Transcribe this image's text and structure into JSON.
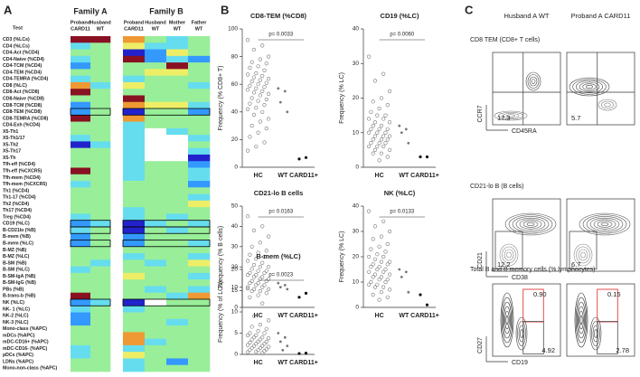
{
  "panel_labels": [
    "A",
    "B",
    "C"
  ],
  "heatmap": {
    "test_header": "Test",
    "families": [
      {
        "name": "Family A",
        "columns": [
          {
            "name": "Proband",
            "genotype": "CARD11"
          },
          {
            "name": "Husband",
            "genotype": "WT"
          }
        ]
      },
      {
        "name": "Family B",
        "columns": [
          {
            "name": "Proband",
            "genotype": "CARD11"
          },
          {
            "name": "Husband",
            "genotype": "WT"
          },
          {
            "name": "Mother",
            "genotype": "WT"
          },
          {
            "name": "Father",
            "genotype": "WT"
          }
        ]
      }
    ],
    "rows": [
      {
        "label": "CD3 (%LCs)",
        "colors": [
          "#812",
          "#812",
          "#e93",
          "#9e9",
          "#6de",
          "#9e9"
        ]
      },
      {
        "label": "CD4 (%LCs)",
        "colors": [
          "#6de",
          "#9e9",
          "#ee6",
          "#6de",
          "#6de",
          "#9e9"
        ]
      },
      {
        "label": "CD4-Act (%CD4)",
        "colors": [
          "#9e9",
          "#9e9",
          "#22c",
          "#39f",
          "#ee6",
          "#9e9"
        ]
      },
      {
        "label": "CD4-Naive (%CD4)",
        "colors": [
          "#6de",
          "#9e9",
          "#812",
          "#39f",
          "#6de",
          "#39f"
        ]
      },
      {
        "label": "CD4-TCM (%CD4)",
        "colors": [
          "#39f",
          "#9e9",
          "#9e9",
          "#9e9",
          "#812",
          "#9e9"
        ]
      },
      {
        "label": "CD4-TEM (%CD4)",
        "colors": [
          "#9e9",
          "#9e9",
          "#9e9",
          "#ee6",
          "#ee6",
          "#9e9"
        ]
      },
      {
        "label": "CD4-TEMRA (%CD4)",
        "colors": [
          "#6de",
          "#9e9",
          "#6de",
          "#9e9",
          "#9e9",
          "#9e9"
        ]
      },
      {
        "label": "CD8 (%LC)",
        "colors": [
          "#e93",
          "#6de",
          "#ee6",
          "#9e9",
          "#9e9",
          "#6de"
        ]
      },
      {
        "label": "CD8-Act (%CD8)",
        "colors": [
          "#812",
          "#9e9",
          "#9e9",
          "#9e9",
          "#9e9",
          "#9e9"
        ]
      },
      {
        "label": "CD8-Naive (%CD8)",
        "colors": [
          "#9e9",
          "#9e9",
          "#812",
          "#9e9",
          "#9e9",
          "#9e9"
        ]
      },
      {
        "label": "CD8-TCM (%CD8)",
        "colors": [
          "#39f",
          "#9e9",
          "#e93",
          "#ee6",
          "#ee6",
          "#6de"
        ]
      },
      {
        "label": "CD8-TEM (%CD8)",
        "colors": [
          "#39f",
          "#9e9",
          "#22c",
          "#9e9",
          "#9e9",
          "#39f"
        ],
        "boxed": true
      },
      {
        "label": "CD8-TEMRA (%CD8)",
        "colors": [
          "#812",
          "#9e9",
          "#e93",
          "#9e9",
          "#9e9",
          "#9e9"
        ]
      },
      {
        "label": "CD4-Exh (%CD4)",
        "colors": [
          "#9e9",
          "#9e9",
          "#6de",
          "#9e9",
          "#9e9",
          "#9e9"
        ]
      },
      {
        "label": "X5-Th1",
        "colors": [
          "#9e9",
          "#9e9",
          "#6de",
          "#fff",
          "#6de",
          "#9e9"
        ]
      },
      {
        "label": "X5-Th1/17",
        "colors": [
          "#6de",
          "#9e9",
          "#6de",
          "#fff",
          "#fff",
          "#6de"
        ]
      },
      {
        "label": "X5-Th2",
        "colors": [
          "#22c",
          "#6de",
          "#6de",
          "#fff",
          "#fff",
          "#9e9"
        ]
      },
      {
        "label": "X5-Th17",
        "colors": [
          "#9e9",
          "#9e9",
          "#6de",
          "#fff",
          "#fff",
          "#6de"
        ]
      },
      {
        "label": "X5-Th",
        "colors": [
          "#9e9",
          "#9e9",
          "#6de",
          "#fff",
          "#fff",
          "#22c"
        ]
      },
      {
        "label": "Tfh-eff (%CD4)",
        "colors": [
          "#9e9",
          "#9e9",
          "#6de",
          "#9e9",
          "#9e9",
          "#39f"
        ]
      },
      {
        "label": "Tfh-eff (%CXCR5)",
        "colors": [
          "#812",
          "#9e9",
          "#6de",
          "#9e9",
          "#9e9",
          "#6de"
        ]
      },
      {
        "label": "Tfh-mem (%CD4)",
        "colors": [
          "#9e9",
          "#9e9",
          "#6de",
          "#9e9",
          "#9e9",
          "#6de"
        ]
      },
      {
        "label": "Tfh-mem (%CXCR5)",
        "colors": [
          "#6de",
          "#9e9",
          "#9e9",
          "#9e9",
          "#9e9",
          "#39f"
        ]
      },
      {
        "label": "Th1 (%CD4)",
        "colors": [
          "#9e9",
          "#9e9",
          "#9e9",
          "#9e9",
          "#9e9",
          "#9e9"
        ]
      },
      {
        "label": "Th1-17 (%CD4)",
        "colors": [
          "#9e9",
          "#9e9",
          "#9e9",
          "#9e9",
          "#9e9",
          "#6de"
        ]
      },
      {
        "label": "Th2 (%CD4)",
        "colors": [
          "#9e9",
          "#9e9",
          "#9e9",
          "#9e9",
          "#9e9",
          "#ee6"
        ]
      },
      {
        "label": "Th17 (%CD4)",
        "colors": [
          "#9e9",
          "#9e9",
          "#6de",
          "#9e9",
          "#9e9",
          "#9e9"
        ]
      },
      {
        "label": "Treg (%CD4)",
        "colors": [
          "#6de",
          "#9e9",
          "#6de",
          "#9e9",
          "#6de",
          "#9e9"
        ]
      },
      {
        "label": "CD19 (%LC)",
        "colors": [
          "#39f",
          "#6de",
          "#22c",
          "#6de",
          "#9e9",
          "#6de"
        ],
        "boxed": true
      },
      {
        "label": "B-CD21lo (%B)",
        "colors": [
          "#6de",
          "#9e9",
          "#22c",
          "#9e9",
          "#6de",
          "#9e9"
        ],
        "boxed": true
      },
      {
        "label": "B-mem (%B)",
        "colors": [
          "#39f",
          "#9e9",
          "#39f",
          "#9e9",
          "#9e9",
          "#9e9"
        ]
      },
      {
        "label": "B-mem (%LC)",
        "colors": [
          "#39f",
          "#9e9",
          "#39f",
          "#9e9",
          "#9e9",
          "#6de"
        ],
        "boxed": true
      },
      {
        "label": "B-MZ (%B)",
        "colors": [
          "#9e9",
          "#9e9",
          "#9e9",
          "#9e9",
          "#9e9",
          "#9e9"
        ]
      },
      {
        "label": "B-MZ (%LC)",
        "colors": [
          "#9e9",
          "#9e9",
          "#6de",
          "#9e9",
          "#9e9",
          "#6de"
        ]
      },
      {
        "label": "B-SM (%B)",
        "colors": [
          "#9e9",
          "#6de",
          "#9e9",
          "#6de",
          "#9e9",
          "#ee6"
        ]
      },
      {
        "label": "B-SM (%LC)",
        "colors": [
          "#6de",
          "#9e9",
          "#9e9",
          "#9e9",
          "#9e9",
          "#9e9"
        ]
      },
      {
        "label": "B-SM-IgA (%B)",
        "colors": [
          "#9e9",
          "#9e9",
          "#ee6",
          "#9e9",
          "#9e9",
          "#6de"
        ]
      },
      {
        "label": "B-SM-IgG (%B)",
        "colors": [
          "#9e9",
          "#9e9",
          "#9e9",
          "#9e9",
          "#9e9",
          "#9e9"
        ]
      },
      {
        "label": "PBs (%B)",
        "colors": [
          "#9e9",
          "#9e9",
          "#9e9",
          "#6de",
          "#9e9",
          "#6de"
        ]
      },
      {
        "label": "B-trans-b (%B)",
        "colors": [
          "#812",
          "#9e9",
          "#9e9",
          "#9e9",
          "#6de",
          "#e93"
        ]
      },
      {
        "label": "NK (%LC)",
        "colors": [
          "#39f",
          "#6de",
          "#22c",
          "#fff",
          "#9e9",
          "#9e9"
        ],
        "boxed": true
      },
      {
        "label": "NK- 1 (%LC)",
        "colors": [
          "#6de",
          "#9e9",
          "#6de",
          "#9e9",
          "#9e9",
          "#9e9"
        ]
      },
      {
        "label": "NK-2 (%LC)",
        "colors": [
          "#39f",
          "#9e9",
          "#9e9",
          "#9e9",
          "#9e9",
          "#9e9"
        ]
      },
      {
        "label": "NK-3 (%LC)",
        "colors": [
          "#39f",
          "#9e9",
          "#9e9",
          "#9e9",
          "#6de",
          "#9e9"
        ]
      },
      {
        "label": "Mono-class (%APC)",
        "colors": [
          "#9e9",
          "#9e9",
          "#9e9",
          "#9e9",
          "#9e9",
          "#9e9"
        ]
      },
      {
        "label": "mDCs (%APC)",
        "colors": [
          "#9e9",
          "#9e9",
          "#e93",
          "#9e9",
          "#9e9",
          "#9e9"
        ]
      },
      {
        "label": "mDC-CD16+ (%APC)",
        "colors": [
          "#9e9",
          "#9e9",
          "#e93",
          "#6de",
          "#9e9",
          "#9e9"
        ]
      },
      {
        "label": "mDC-CD16- (%APC)",
        "colors": [
          "#6de",
          "#9e9",
          "#6de",
          "#9e9",
          "#9e9",
          "#9e9"
        ]
      },
      {
        "label": "pDCs (%APC)",
        "colors": [
          "#6de",
          "#9e9",
          "#ee6",
          "#9e9",
          "#9e9",
          "#9e9"
        ]
      },
      {
        "label": "LDNs (%APC)",
        "colors": [
          "#9e9",
          "#9e9",
          "#6de",
          "#9e9",
          "#39f",
          "#9e9"
        ]
      },
      {
        "label": "Mono-non-class (%APC)",
        "colors": [
          "#9e9",
          "#9e9",
          "#6de",
          "#9e9",
          "#9e9",
          "#9e9"
        ]
      }
    ]
  },
  "strip_plots": [
    {
      "title": "CD8-TEM (%CD8)",
      "ylabel": "Frequency (% CD8+ T)",
      "p_value": "p= 0.0033",
      "categories": [
        "HC",
        "WT",
        "CARD11+"
      ],
      "ylim": [
        0,
        100
      ],
      "yticks": [
        0,
        20,
        40,
        60,
        80,
        100
      ],
      "groups": [
        [
          92,
          88,
          85,
          80,
          78,
          76,
          75,
          73,
          72,
          70,
          68,
          67,
          66,
          65,
          64,
          63,
          62,
          61,
          60,
          59,
          58,
          57,
          56,
          55,
          54,
          53,
          52,
          50,
          49,
          48,
          46,
          45,
          43,
          42,
          40,
          38,
          35,
          33,
          30,
          28,
          25,
          22,
          18,
          15,
          12
        ],
        [
          57,
          55,
          47,
          40
        ],
        [
          6,
          7
        ]
      ]
    },
    {
      "title": "CD19 (%LC)",
      "ylabel": "Frequency (% LC)",
      "p_value": "p= 0.0060",
      "categories": [
        "HC",
        "WT",
        "CARD11+"
      ],
      "ylim": [
        0,
        40
      ],
      "yticks": [
        0,
        10,
        20,
        30,
        40
      ],
      "groups": [
        [
          32,
          27,
          25,
          22,
          20,
          19,
          18,
          17,
          16,
          15,
          15,
          14,
          14,
          13,
          13,
          12,
          12,
          11,
          11,
          11,
          10,
          10,
          10,
          9,
          9,
          9,
          8,
          8,
          8,
          7,
          7,
          7,
          6,
          6,
          6,
          5,
          5,
          4,
          4,
          3,
          2
        ],
        [
          12,
          11,
          10,
          7
        ],
        [
          3,
          3
        ]
      ]
    },
    {
      "title": "CD21-lo B cells",
      "ylabel": "Frequency (% B cells)",
      "p_value": "p= 0.0163",
      "categories": [
        "HC",
        "WT",
        "CARD11+"
      ],
      "ylim": [
        0,
        50
      ],
      "yticks": [
        0,
        10,
        20,
        30,
        40,
        50
      ],
      "groups": [
        [
          45,
          40,
          38,
          35,
          32,
          30,
          28,
          27,
          26,
          25,
          24,
          23,
          22,
          21,
          20,
          20,
          19,
          18,
          18,
          17,
          17,
          16,
          16,
          15,
          15,
          14,
          14,
          13,
          13,
          12,
          12,
          11,
          11,
          10,
          10,
          9,
          9,
          8,
          8,
          7,
          6,
          5
        ],
        [
          12,
          11,
          10,
          9
        ],
        [
          5,
          7
        ]
      ]
    },
    {
      "title": "NK (%LC)",
      "ylabel": "Frequency (% LC)",
      "p_value": "p= 0.0133",
      "categories": [
        "HC",
        "WT",
        "CARD11+"
      ],
      "ylim": [
        0,
        40
      ],
      "yticks": [
        0,
        10,
        20,
        30,
        40
      ],
      "groups": [
        [
          38,
          34,
          32,
          30,
          28,
          27,
          25,
          24,
          23,
          22,
          21,
          20,
          20,
          19,
          18,
          18,
          17,
          17,
          16,
          16,
          15,
          15,
          14,
          14,
          13,
          13,
          12,
          12,
          11,
          11,
          10,
          10,
          9,
          9,
          8,
          8,
          7,
          6,
          5,
          4,
          3
        ],
        [
          15,
          14,
          12,
          6
        ],
        [
          5,
          1
        ]
      ]
    },
    {
      "title": "B-mem (%LC)",
      "ylabel": "Frequency (% of LCs)",
      "p_value": "p= 0.0023",
      "categories": [
        "HC",
        "WT",
        "CARD11+"
      ],
      "ylim": [
        0,
        20
      ],
      "yticks": [
        0,
        5,
        10,
        15,
        20
      ],
      "groups": [
        [
          15.5,
          12,
          9,
          8,
          7,
          6.5,
          6,
          5.5,
          5,
          5,
          4.5,
          4.5,
          4,
          4,
          3.8,
          3.5,
          3.5,
          3,
          3,
          2.8,
          2.5,
          2.5,
          2.2,
          2,
          2,
          1.8,
          1.5,
          1.5,
          1.2,
          1,
          1,
          0.8,
          0.6,
          0.5,
          0.3
        ],
        [
          5,
          4,
          3,
          2,
          1
        ],
        [
          0.2,
          0.3
        ]
      ]
    }
  ],
  "flow": {
    "columns": [
      "Husband A WT",
      "Proband A CARD11"
    ],
    "rows": [
      {
        "title": "CD8 TEM (CD8+ T cells)",
        "y_axis": "CCR7",
        "x_axis": "CD45RA",
        "gates": [
          [
            {
              "label": "17.3",
              "color": "#222"
            }
          ],
          [
            {
              "label": "5.7",
              "color": "#222"
            }
          ]
        ]
      },
      {
        "title": "CD21-lo B (B cells)",
        "y_axis": "CD21",
        "x_axis": "CD38",
        "gates": [
          [
            {
              "label": "12.2",
              "color": "#222"
            }
          ],
          [
            {
              "label": "6.7",
              "color": "#222"
            }
          ]
        ]
      },
      {
        "title": "Total B and B memory cells (% lymphocytes)",
        "y_axis": "CD27",
        "x_axis": "CD19",
        "gates": [
          [
            {
              "label": "0.90",
              "color": "#d22"
            },
            {
              "label": "4.92",
              "color": "#222"
            }
          ],
          [
            {
              "label": "0.15",
              "color": "#d22"
            },
            {
              "label": "2.78",
              "color": "#222"
            }
          ]
        ]
      }
    ]
  }
}
